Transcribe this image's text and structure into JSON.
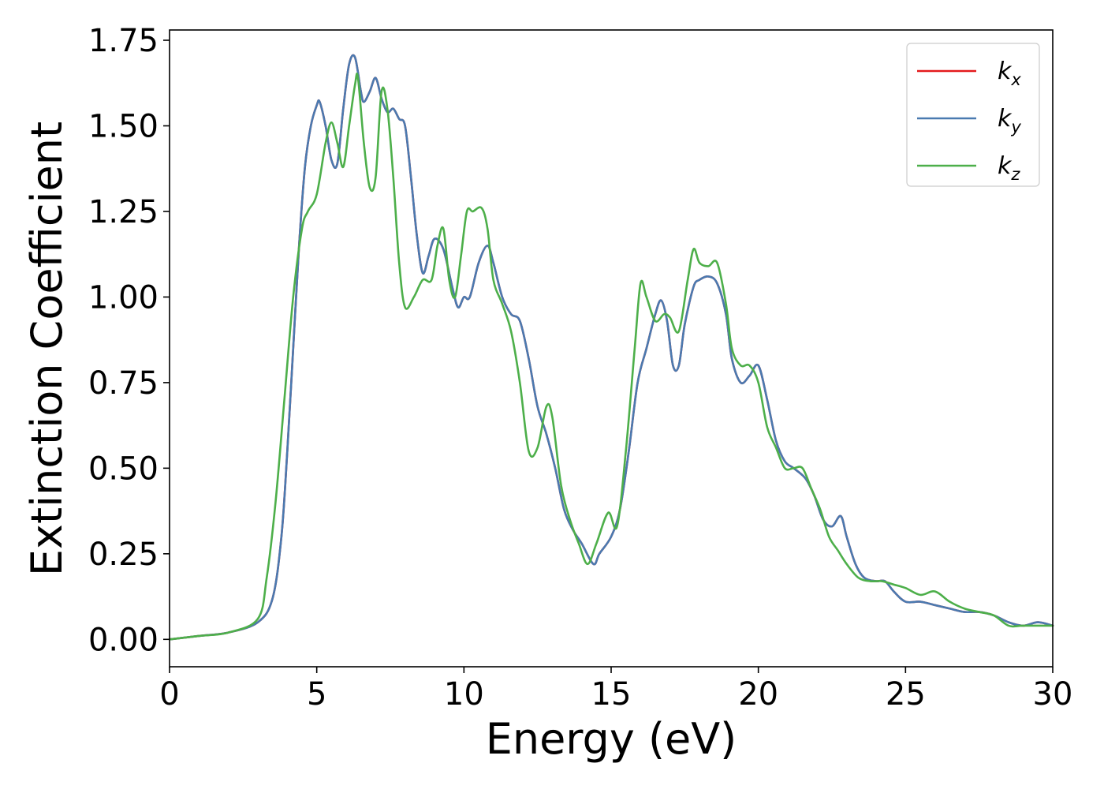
{
  "chart_data": {
    "type": "line",
    "xlabel": "Energy (eV)",
    "ylabel": "Extinction Coefficient",
    "xlim": [
      0,
      30
    ],
    "ylim": [
      -0.08,
      1.78
    ],
    "xticks": [
      0,
      5,
      10,
      15,
      20,
      25,
      30
    ],
    "xtick_labels": [
      "0",
      "5",
      "10",
      "15",
      "20",
      "25",
      "30"
    ],
    "yticks": [
      0.0,
      0.25,
      0.5,
      0.75,
      1.0,
      1.25,
      1.5,
      1.75
    ],
    "ytick_labels": [
      "0.00",
      "0.25",
      "0.50",
      "0.75",
      "1.00",
      "1.25",
      "1.50",
      "1.75"
    ],
    "grid": false,
    "legend_position": "top-right",
    "series": [
      {
        "name": "k_x",
        "legend_base": "k",
        "legend_sub": "x",
        "color": "#e41a1c",
        "x": [
          0,
          1,
          2,
          3,
          3.5,
          3.8,
          4.0,
          4.2,
          4.4,
          4.6,
          4.8,
          5.0,
          5.1,
          5.3,
          5.5,
          5.7,
          5.9,
          6.1,
          6.3,
          6.5,
          6.6,
          6.8,
          7.0,
          7.2,
          7.4,
          7.6,
          7.8,
          8.0,
          8.2,
          8.4,
          8.6,
          8.8,
          9.0,
          9.3,
          9.6,
          9.8,
          10.0,
          10.2,
          10.5,
          10.8,
          11.0,
          11.3,
          11.6,
          11.9,
          12.2,
          12.5,
          12.8,
          13.1,
          13.4,
          13.7,
          14.0,
          14.4,
          14.6,
          15.0,
          15.3,
          15.6,
          15.9,
          16.2,
          16.5,
          16.7,
          16.9,
          17.1,
          17.3,
          17.5,
          17.8,
          18.0,
          18.3,
          18.6,
          18.9,
          19.1,
          19.4,
          19.7,
          20.0,
          20.3,
          20.6,
          20.9,
          21.2,
          21.6,
          21.9,
          22.2,
          22.5,
          22.8,
          23.0,
          23.3,
          23.6,
          24.0,
          24.3,
          24.6,
          25.0,
          25.5,
          26.0,
          26.5,
          27.0,
          27.5,
          28.0,
          28.5,
          29.0,
          29.5,
          30.0
        ],
        "y": [
          0.0,
          0.01,
          0.02,
          0.05,
          0.12,
          0.3,
          0.55,
          0.85,
          1.15,
          1.38,
          1.5,
          1.56,
          1.57,
          1.5,
          1.4,
          1.39,
          1.55,
          1.68,
          1.7,
          1.6,
          1.57,
          1.6,
          1.64,
          1.58,
          1.54,
          1.55,
          1.52,
          1.5,
          1.35,
          1.18,
          1.07,
          1.12,
          1.17,
          1.14,
          1.03,
          0.97,
          1.0,
          1.0,
          1.1,
          1.15,
          1.1,
          1.0,
          0.95,
          0.93,
          0.82,
          0.68,
          0.6,
          0.5,
          0.38,
          0.32,
          0.28,
          0.22,
          0.25,
          0.3,
          0.38,
          0.55,
          0.75,
          0.85,
          0.95,
          0.99,
          0.93,
          0.8,
          0.8,
          0.92,
          1.03,
          1.05,
          1.06,
          1.04,
          0.95,
          0.82,
          0.75,
          0.77,
          0.8,
          0.7,
          0.58,
          0.52,
          0.5,
          0.47,
          0.42,
          0.35,
          0.33,
          0.36,
          0.3,
          0.22,
          0.18,
          0.17,
          0.17,
          0.14,
          0.11,
          0.11,
          0.1,
          0.09,
          0.08,
          0.08,
          0.07,
          0.05,
          0.04,
          0.05,
          0.04
        ]
      },
      {
        "name": "k_y",
        "legend_base": "k",
        "legend_sub": "y",
        "color": "#4a7ab0",
        "x": [
          0,
          1,
          2,
          3,
          3.5,
          3.8,
          4.0,
          4.2,
          4.4,
          4.6,
          4.8,
          5.0,
          5.1,
          5.3,
          5.5,
          5.7,
          5.9,
          6.1,
          6.3,
          6.5,
          6.6,
          6.8,
          7.0,
          7.2,
          7.4,
          7.6,
          7.8,
          8.0,
          8.2,
          8.4,
          8.6,
          8.8,
          9.0,
          9.3,
          9.6,
          9.8,
          10.0,
          10.2,
          10.5,
          10.8,
          11.0,
          11.3,
          11.6,
          11.9,
          12.2,
          12.5,
          12.8,
          13.1,
          13.4,
          13.7,
          14.0,
          14.4,
          14.6,
          15.0,
          15.3,
          15.6,
          15.9,
          16.2,
          16.5,
          16.7,
          16.9,
          17.1,
          17.3,
          17.5,
          17.8,
          18.0,
          18.3,
          18.6,
          18.9,
          19.1,
          19.4,
          19.7,
          20.0,
          20.3,
          20.6,
          20.9,
          21.2,
          21.6,
          21.9,
          22.2,
          22.5,
          22.8,
          23.0,
          23.3,
          23.6,
          24.0,
          24.3,
          24.6,
          25.0,
          25.5,
          26.0,
          26.5,
          27.0,
          27.5,
          28.0,
          28.5,
          29.0,
          29.5,
          30.0
        ],
        "y": [
          0.0,
          0.01,
          0.02,
          0.05,
          0.12,
          0.3,
          0.55,
          0.85,
          1.15,
          1.38,
          1.5,
          1.56,
          1.57,
          1.5,
          1.4,
          1.39,
          1.55,
          1.68,
          1.7,
          1.6,
          1.57,
          1.6,
          1.64,
          1.58,
          1.54,
          1.55,
          1.52,
          1.5,
          1.35,
          1.18,
          1.07,
          1.12,
          1.17,
          1.14,
          1.03,
          0.97,
          1.0,
          1.0,
          1.1,
          1.15,
          1.1,
          1.0,
          0.95,
          0.93,
          0.82,
          0.68,
          0.6,
          0.5,
          0.38,
          0.32,
          0.28,
          0.22,
          0.25,
          0.3,
          0.38,
          0.55,
          0.75,
          0.85,
          0.95,
          0.99,
          0.93,
          0.8,
          0.8,
          0.92,
          1.03,
          1.05,
          1.06,
          1.04,
          0.95,
          0.82,
          0.75,
          0.77,
          0.8,
          0.7,
          0.58,
          0.52,
          0.5,
          0.47,
          0.42,
          0.35,
          0.33,
          0.36,
          0.3,
          0.22,
          0.18,
          0.17,
          0.17,
          0.14,
          0.11,
          0.11,
          0.1,
          0.09,
          0.08,
          0.08,
          0.07,
          0.05,
          0.04,
          0.05,
          0.04
        ]
      },
      {
        "name": "k_z",
        "legend_base": "k",
        "legend_sub": "z",
        "color": "#4daf4a",
        "x": [
          0,
          1,
          2,
          3,
          3.3,
          3.6,
          3.9,
          4.2,
          4.5,
          4.7,
          5.0,
          5.3,
          5.5,
          5.7,
          5.9,
          6.1,
          6.3,
          6.4,
          6.6,
          6.8,
          7.0,
          7.2,
          7.4,
          7.6,
          7.8,
          8.0,
          8.3,
          8.6,
          8.9,
          9.1,
          9.3,
          9.5,
          9.7,
          9.9,
          10.1,
          10.3,
          10.6,
          10.8,
          11.0,
          11.3,
          11.6,
          11.9,
          12.2,
          12.5,
          12.8,
          13.0,
          13.3,
          13.6,
          13.9,
          14.2,
          14.5,
          14.9,
          15.2,
          15.5,
          15.8,
          16.0,
          16.2,
          16.5,
          16.8,
          17.0,
          17.3,
          17.6,
          17.8,
          18.0,
          18.3,
          18.6,
          18.9,
          19.1,
          19.4,
          19.7,
          20.0,
          20.3,
          20.6,
          20.9,
          21.2,
          21.5,
          21.8,
          22.1,
          22.4,
          22.7,
          23.0,
          23.4,
          23.8,
          24.2,
          24.6,
          25.0,
          25.5,
          26.0,
          26.5,
          27.0,
          27.5,
          28.0,
          28.5,
          29.0,
          30.0
        ],
        "y": [
          0.0,
          0.01,
          0.02,
          0.06,
          0.18,
          0.4,
          0.7,
          1.0,
          1.2,
          1.25,
          1.3,
          1.45,
          1.51,
          1.45,
          1.38,
          1.5,
          1.62,
          1.64,
          1.45,
          1.32,
          1.35,
          1.6,
          1.55,
          1.35,
          1.1,
          0.97,
          1.0,
          1.05,
          1.05,
          1.15,
          1.2,
          1.05,
          1.0,
          1.12,
          1.25,
          1.25,
          1.26,
          1.2,
          1.05,
          0.98,
          0.9,
          0.75,
          0.55,
          0.56,
          0.68,
          0.65,
          0.45,
          0.35,
          0.28,
          0.22,
          0.28,
          0.37,
          0.33,
          0.55,
          0.85,
          1.04,
          1.0,
          0.93,
          0.95,
          0.94,
          0.9,
          1.05,
          1.14,
          1.1,
          1.09,
          1.1,
          0.98,
          0.85,
          0.8,
          0.8,
          0.75,
          0.62,
          0.56,
          0.5,
          0.5,
          0.5,
          0.44,
          0.38,
          0.3,
          0.26,
          0.22,
          0.18,
          0.17,
          0.17,
          0.16,
          0.15,
          0.13,
          0.14,
          0.11,
          0.09,
          0.08,
          0.07,
          0.04,
          0.04,
          0.04
        ]
      }
    ]
  }
}
